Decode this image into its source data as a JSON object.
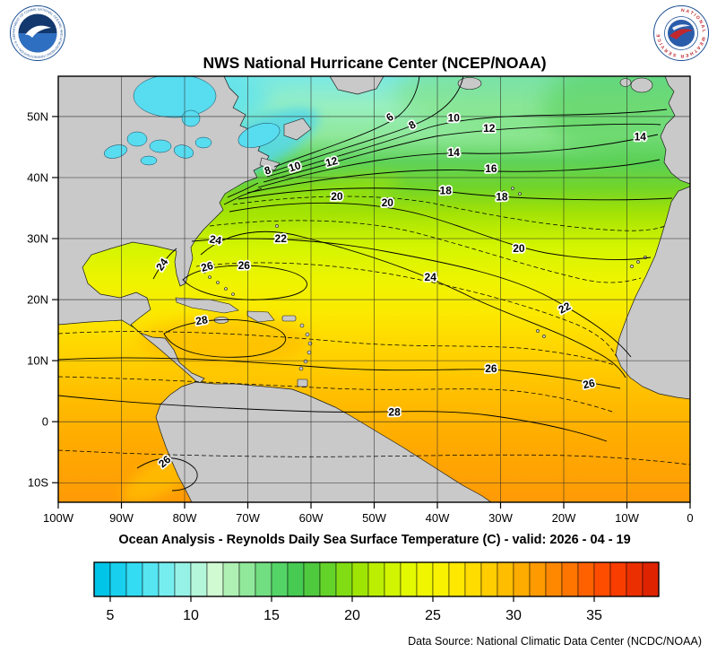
{
  "header": {
    "title": "NWS National Hurricane Center (NCEP/NOAA)"
  },
  "logos": {
    "noaa": {
      "ring_text": "NATIONAL OCEANIC AND ATMOSPHERIC ADMINISTRATION • U.S. DEPARTMENT OF COMMERCE"
    },
    "nws": {
      "ring_text": "NATIONAL WEATHER SERVICE"
    }
  },
  "map": {
    "lat_ticks": [
      {
        "label": "50N",
        "lat": 50
      },
      {
        "label": "40N",
        "lat": 40
      },
      {
        "label": "30N",
        "lat": 30
      },
      {
        "label": "20N",
        "lat": 20
      },
      {
        "label": "10N",
        "lat": 10
      },
      {
        "label": "0",
        "lat": 0
      },
      {
        "label": "10S",
        "lat": -10
      }
    ],
    "lon_ticks": [
      {
        "label": "100W",
        "lon": -100
      },
      {
        "label": "90W",
        "lon": -90
      },
      {
        "label": "80W",
        "lon": -80
      },
      {
        "label": "70W",
        "lon": -70
      },
      {
        "label": "60W",
        "lon": -60
      },
      {
        "label": "50W",
        "lon": -50
      },
      {
        "label": "40W",
        "lon": -40
      },
      {
        "label": "30W",
        "lon": -30
      },
      {
        "label": "20W",
        "lon": -20
      },
      {
        "label": "10W",
        "lon": -10
      },
      {
        "label": "0",
        "lon": 0
      }
    ],
    "contour_labels": [
      {
        "value": "6",
        "lon": -47.2,
        "lat": 50.0,
        "rot": -35
      },
      {
        "value": "8",
        "lon": -43.7,
        "lat": 48.7,
        "rot": -30
      },
      {
        "value": "8",
        "lon": -66.7,
        "lat": 41.2,
        "rot": -18
      },
      {
        "value": "10",
        "lon": -37.4,
        "lat": 49.8,
        "rot": 0
      },
      {
        "value": "10",
        "lon": -62.4,
        "lat": 41.8,
        "rot": -18
      },
      {
        "value": "12",
        "lon": -31.8,
        "lat": 48.1,
        "rot": 0
      },
      {
        "value": "12",
        "lon": -56.6,
        "lat": 42.6,
        "rot": -15
      },
      {
        "value": "14",
        "lon": -37.4,
        "lat": 44.1,
        "rot": 0
      },
      {
        "value": "14",
        "lon": -7.9,
        "lat": 46.7,
        "rot": 0
      },
      {
        "value": "16",
        "lon": -31.5,
        "lat": 41.5,
        "rot": 0
      },
      {
        "value": "18",
        "lon": -38.7,
        "lat": 37.9,
        "rot": 0
      },
      {
        "value": "18",
        "lon": -29.8,
        "lat": 36.8,
        "rot": 0
      },
      {
        "value": "20",
        "lon": -55.9,
        "lat": 36.9,
        "rot": 0
      },
      {
        "value": "20",
        "lon": -47.9,
        "lat": 35.9,
        "rot": 0
      },
      {
        "value": "20",
        "lon": -27.1,
        "lat": 28.4,
        "rot": 0
      },
      {
        "value": "22",
        "lon": -64.8,
        "lat": 30.0,
        "rot": 0
      },
      {
        "value": "22",
        "lon": -19.6,
        "lat": 18.7,
        "rot": -28
      },
      {
        "value": "24",
        "lon": -75.2,
        "lat": 29.8,
        "rot": 10
      },
      {
        "value": "24",
        "lon": -41.1,
        "lat": 23.7,
        "rot": 0
      },
      {
        "value": "24",
        "lon": -83.1,
        "lat": 26.0,
        "rot": -55
      },
      {
        "value": "26",
        "lon": -76.3,
        "lat": 25.4,
        "rot": -15
      },
      {
        "value": "26",
        "lon": -70.6,
        "lat": 25.6,
        "rot": 0
      },
      {
        "value": "26",
        "lon": -31.5,
        "lat": 8.7,
        "rot": 0
      },
      {
        "value": "26",
        "lon": -15.9,
        "lat": 6.2,
        "rot": -12
      },
      {
        "value": "26",
        "lon": -82.8,
        "lat": -6.4,
        "rot": -40
      },
      {
        "value": "28",
        "lon": -77.2,
        "lat": 16.6,
        "rot": -10
      },
      {
        "value": "28",
        "lon": -46.8,
        "lat": 1.6,
        "rot": 0
      }
    ]
  },
  "caption": "Ocean Analysis - Reynolds Daily Sea Surface Temperature (C) - valid: 2026 - 04 - 19",
  "colorbar": {
    "min": 4,
    "max": 39,
    "ticks": [
      {
        "label": "5",
        "value": 5
      },
      {
        "label": "10",
        "value": 10
      },
      {
        "label": "15",
        "value": 15
      },
      {
        "label": "20",
        "value": 20
      },
      {
        "label": "25",
        "value": 25
      },
      {
        "label": "30",
        "value": 30
      },
      {
        "label": "35",
        "value": 35
      }
    ],
    "colors": [
      "#00C4E8",
      "#18D0EE",
      "#33DCF2",
      "#55E6F2",
      "#76EEF0",
      "#96F2E6",
      "#B4F6DA",
      "#CFFAD2",
      "#AFF0B4",
      "#90E89B",
      "#70DE81",
      "#54D467",
      "#46CA52",
      "#4FC93D",
      "#63D329",
      "#81DC14",
      "#9FE503",
      "#BCEE00",
      "#D1F400",
      "#E3F900",
      "#EFF600",
      "#F8F100",
      "#FFE800",
      "#FFDC00",
      "#FFCD00",
      "#FFBD00",
      "#FFAC00",
      "#FF9A00",
      "#FF8800",
      "#FF7500",
      "#FF6100",
      "#FF4D00",
      "#F93C00",
      "#EC2F00",
      "#DE2300"
    ]
  },
  "footer": {
    "data_source": "Data Source: National Climatic Data Center (NCDC/NOAA)"
  },
  "chart_data": {
    "type": "heatmap",
    "title": "NWS National Hurricane Center (NCEP/NOAA)",
    "subtitle": "Ocean Analysis - Reynolds Daily Sea Surface Temperature (C) - valid: 2026 - 04 - 19",
    "variable": "Reynolds Daily Sea Surface Temperature",
    "units": "C",
    "valid_date": "2026 - 04 - 19",
    "x_axis_ticks": [
      "100W",
      "90W",
      "80W",
      "70W",
      "60W",
      "50W",
      "40W",
      "30W",
      "20W",
      "10W",
      "0"
    ],
    "y_axis_ticks": [
      "50N",
      "40N",
      "30N",
      "20N",
      "10N",
      "0",
      "10S"
    ],
    "colorbar_ticks_c": [
      5,
      10,
      15,
      20,
      25,
      30,
      35
    ],
    "colorbar_range_c": [
      4,
      39
    ],
    "contour_interval_c": 2,
    "labeled_isotherms_c": [
      6,
      8,
      10,
      12,
      14,
      16,
      18,
      20,
      22,
      24,
      26,
      28
    ],
    "data_source": "Data Source: National Climatic Data Center (NCDC/NOAA)"
  }
}
